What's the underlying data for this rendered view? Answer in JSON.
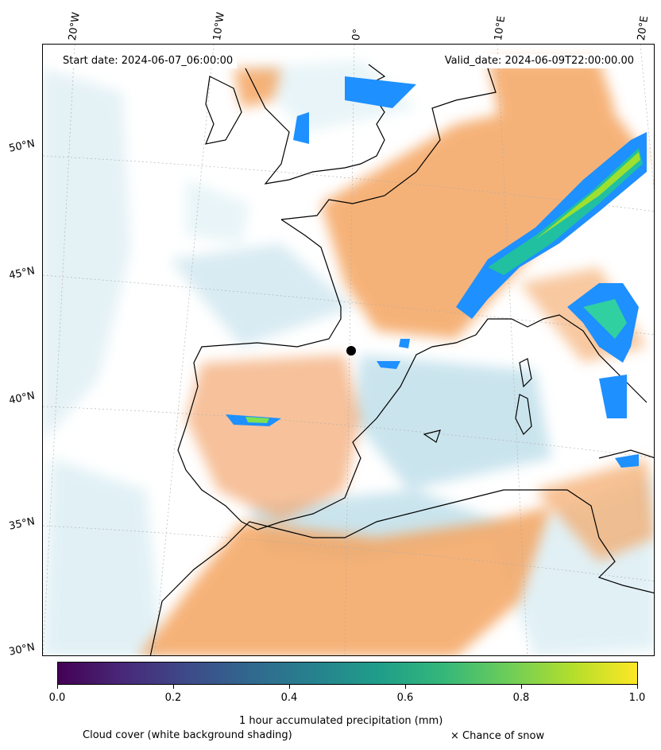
{
  "map": {
    "start_date": "Start date: 2024-06-07_06:00:00",
    "valid_date": "Valid_date: 2024-06-09T22:00:00.00",
    "lon_labels": [
      "20°W",
      "10°W",
      "0°",
      "10°E",
      "20°E"
    ],
    "lat_labels": [
      "50°N",
      "45°N",
      "40°N",
      "35°N",
      "30°N"
    ]
  },
  "colorbar": {
    "colormap": "viridis",
    "range": [
      0.0,
      1.0
    ],
    "ticks": [
      "0.0",
      "0.2",
      "0.4",
      "0.6",
      "0.8",
      "1.0"
    ],
    "label": "1 hour accumulated precipitation (mm)"
  },
  "legend": {
    "cloud_cover": "Cloud cover (white background shading)",
    "snow": "× Chance of snow"
  },
  "colors": {
    "ocean_cloud": "#add8e6",
    "land_cloud": "#f4a460",
    "precip_low": "#1e90ff",
    "precip_high": "#fde725"
  }
}
